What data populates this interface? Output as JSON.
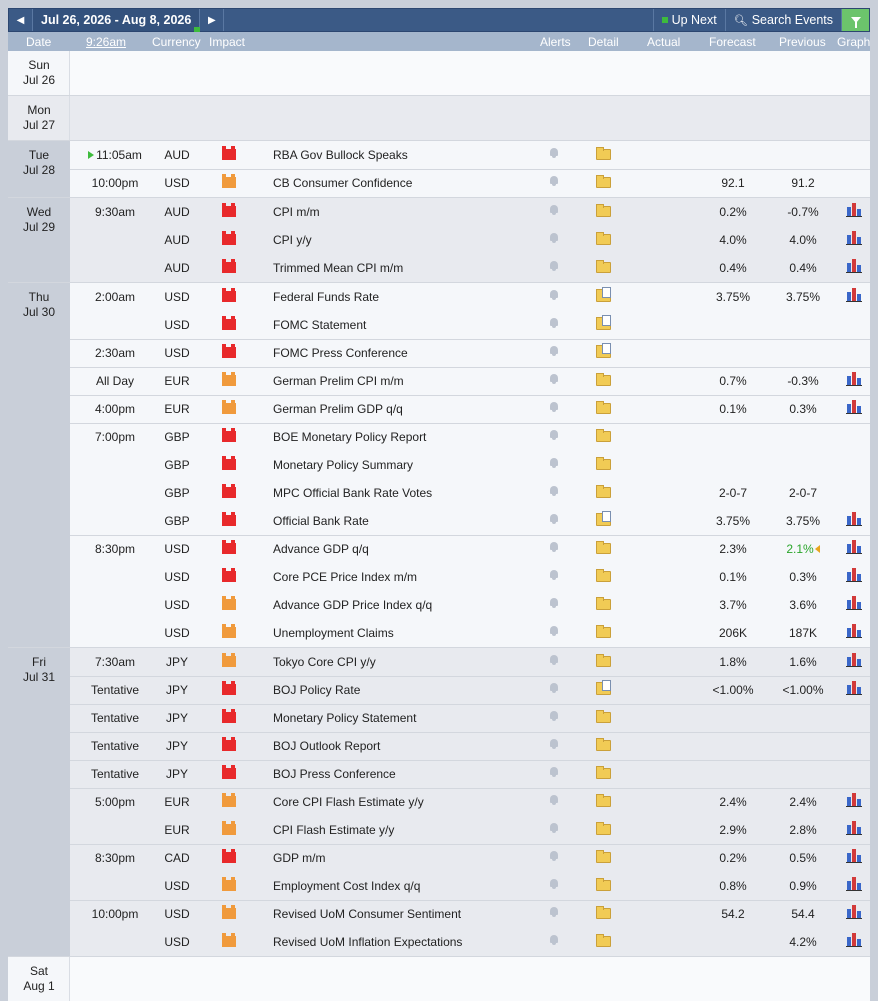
{
  "nav": {
    "range": "Jul 26, 2026 - Aug 8, 2026",
    "up_next": "Up Next",
    "search": "Search Events",
    "prev_arrow": "◀",
    "next_arrow": "▶"
  },
  "columns": {
    "date": "Date",
    "time": "9:26am",
    "currency": "Currency",
    "impact": "Impact",
    "alerts": "Alerts",
    "detail": "Detail",
    "actual": "Actual",
    "forecast": "Forecast",
    "previous": "Previous",
    "graph": "Graph"
  },
  "colors": {
    "header_bar": "#3b5a86",
    "column_header": "#a5b6cc",
    "impact_high": "#e8292b",
    "impact_medium": "#f09a3c",
    "better_value": "#2aa52a"
  },
  "days": [
    {
      "weekday": "Sun",
      "date": "Jul 26"
    },
    {
      "weekday": "Mon",
      "date": "Jul 27"
    },
    {
      "weekday": "Tue",
      "date": "Jul 28"
    },
    {
      "weekday": "Wed",
      "date": "Jul 29"
    },
    {
      "weekday": "Thu",
      "date": "Jul 30"
    },
    {
      "weekday": "Fri",
      "date": "Jul 31"
    },
    {
      "weekday": "Sat",
      "date": "Aug 1"
    }
  ],
  "events": [
    {
      "time": "11:05am",
      "currency": "AUD",
      "impact": "high",
      "event": "RBA Gov Bullock Speaks",
      "forecast": "",
      "previous": "",
      "detail_icon": "folder-icon",
      "graph": false
    },
    {
      "time": "10:00pm",
      "currency": "USD",
      "impact": "medium",
      "event": "CB Consumer Confidence",
      "forecast": "92.1",
      "previous": "91.2",
      "detail_icon": "folder-icon",
      "graph": false
    },
    {
      "time": "9:30am",
      "currency": "AUD",
      "impact": "high",
      "event": "CPI m/m",
      "forecast": "0.2%",
      "previous": "-0.7%",
      "detail_icon": "folder-icon",
      "graph": true
    },
    {
      "time": "",
      "currency": "AUD",
      "impact": "high",
      "event": "CPI y/y",
      "forecast": "4.0%",
      "previous": "4.0%",
      "detail_icon": "folder-icon",
      "graph": true
    },
    {
      "time": "",
      "currency": "AUD",
      "impact": "high",
      "event": "Trimmed Mean CPI m/m",
      "forecast": "0.4%",
      "previous": "0.4%",
      "detail_icon": "folder-icon",
      "graph": true
    },
    {
      "time": "2:00am",
      "currency": "USD",
      "impact": "high",
      "event": "Federal Funds Rate",
      "forecast": "3.75%",
      "previous": "3.75%",
      "detail_icon": "folder-doc-icon",
      "graph": true
    },
    {
      "time": "",
      "currency": "USD",
      "impact": "high",
      "event": "FOMC Statement",
      "forecast": "",
      "previous": "",
      "detail_icon": "folder-doc-icon",
      "graph": false
    },
    {
      "time": "2:30am",
      "currency": "USD",
      "impact": "high",
      "event": "FOMC Press Conference",
      "forecast": "",
      "previous": "",
      "detail_icon": "folder-doc-icon",
      "graph": false
    },
    {
      "time": "All Day",
      "currency": "EUR",
      "impact": "medium",
      "event": "German Prelim CPI m/m",
      "forecast": "0.7%",
      "previous": "-0.3%",
      "detail_icon": "folder-icon",
      "graph": true
    },
    {
      "time": "4:00pm",
      "currency": "EUR",
      "impact": "medium",
      "event": "German Prelim GDP q/q",
      "forecast": "0.1%",
      "previous": "0.3%",
      "detail_icon": "folder-icon",
      "graph": true
    },
    {
      "time": "7:00pm",
      "currency": "GBP",
      "impact": "high",
      "event": "BOE Monetary Policy Report",
      "forecast": "",
      "previous": "",
      "detail_icon": "folder-icon",
      "graph": false
    },
    {
      "time": "",
      "currency": "GBP",
      "impact": "high",
      "event": "Monetary Policy Summary",
      "forecast": "",
      "previous": "",
      "detail_icon": "folder-icon",
      "graph": false
    },
    {
      "time": "",
      "currency": "GBP",
      "impact": "high",
      "event": "MPC Official Bank Rate Votes",
      "forecast": "2-0-7",
      "previous": "2-0-7",
      "detail_icon": "folder-icon",
      "graph": false
    },
    {
      "time": "",
      "currency": "GBP",
      "impact": "high",
      "event": "Official Bank Rate",
      "forecast": "3.75%",
      "previous": "3.75%",
      "detail_icon": "folder-doc-icon",
      "graph": true
    },
    {
      "time": "8:30pm",
      "currency": "USD",
      "impact": "high",
      "event": "Advance GDP q/q",
      "forecast": "2.3%",
      "previous": "2.1%",
      "detail_icon": "folder-icon",
      "graph": true
    },
    {
      "time": "",
      "currency": "USD",
      "impact": "high",
      "event": "Core PCE Price Index m/m",
      "forecast": "0.1%",
      "previous": "0.3%",
      "detail_icon": "folder-icon",
      "graph": true
    },
    {
      "time": "",
      "currency": "USD",
      "impact": "medium",
      "event": "Advance GDP Price Index q/q",
      "forecast": "3.7%",
      "previous": "3.6%",
      "detail_icon": "folder-icon",
      "graph": true
    },
    {
      "time": "",
      "currency": "USD",
      "impact": "medium",
      "event": "Unemployment Claims",
      "forecast": "206K",
      "previous": "187K",
      "detail_icon": "folder-icon",
      "graph": true
    },
    {
      "time": "7:30am",
      "currency": "JPY",
      "impact": "medium",
      "event": "Tokyo Core CPI y/y",
      "forecast": "1.8%",
      "previous": "1.6%",
      "detail_icon": "folder-icon",
      "graph": true
    },
    {
      "time": "Tentative",
      "currency": "JPY",
      "impact": "high",
      "event": "BOJ Policy Rate",
      "forecast": "<1.00%",
      "previous": "<1.00%",
      "detail_icon": "folder-doc-icon",
      "graph": true
    },
    {
      "time": "Tentative",
      "currency": "JPY",
      "impact": "high",
      "event": "Monetary Policy Statement",
      "forecast": "",
      "previous": "",
      "detail_icon": "folder-icon",
      "graph": false
    },
    {
      "time": "Tentative",
      "currency": "JPY",
      "impact": "high",
      "event": "BOJ Outlook Report",
      "forecast": "",
      "previous": "",
      "detail_icon": "folder-icon",
      "graph": false
    },
    {
      "time": "Tentative",
      "currency": "JPY",
      "impact": "high",
      "event": "BOJ Press Conference",
      "forecast": "",
      "previous": "",
      "detail_icon": "folder-icon",
      "graph": false
    },
    {
      "time": "5:00pm",
      "currency": "EUR",
      "impact": "medium",
      "event": "Core CPI Flash Estimate y/y",
      "forecast": "2.4%",
      "previous": "2.4%",
      "detail_icon": "folder-icon",
      "graph": true
    },
    {
      "time": "",
      "currency": "EUR",
      "impact": "medium",
      "event": "CPI Flash Estimate y/y",
      "forecast": "2.9%",
      "previous": "2.8%",
      "detail_icon": "folder-icon",
      "graph": true
    },
    {
      "time": "8:30pm",
      "currency": "CAD",
      "impact": "high",
      "event": "GDP m/m",
      "forecast": "0.2%",
      "previous": "0.5%",
      "detail_icon": "folder-icon",
      "graph": true
    },
    {
      "time": "",
      "currency": "USD",
      "impact": "medium",
      "event": "Employment Cost Index q/q",
      "forecast": "0.8%",
      "previous": "0.9%",
      "detail_icon": "folder-icon",
      "graph": true
    },
    {
      "time": "10:00pm",
      "currency": "USD",
      "impact": "medium",
      "event": "Revised UoM Consumer Sentiment",
      "forecast": "54.2",
      "previous": "54.4",
      "detail_icon": "folder-icon",
      "graph": true
    },
    {
      "time": "",
      "currency": "USD",
      "impact": "medium",
      "event": "Revised UoM Inflation Expectations",
      "forecast": "",
      "previous": "4.2%",
      "detail_icon": "folder-icon",
      "graph": true
    }
  ]
}
